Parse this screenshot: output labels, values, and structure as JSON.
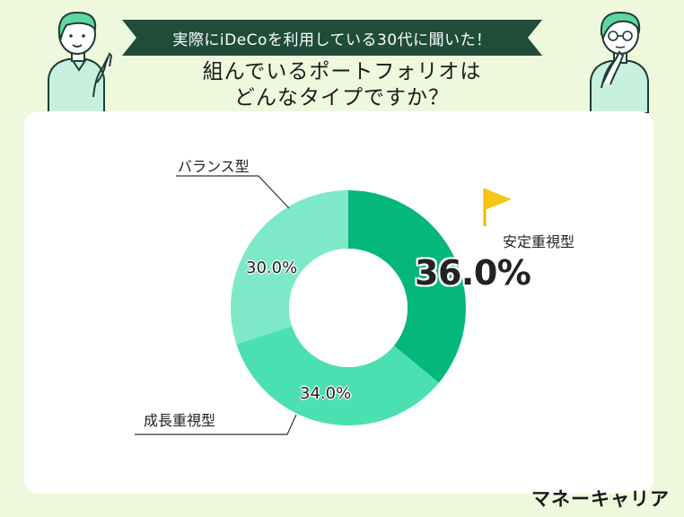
{
  "header": {
    "banner": "実際にiDeCoを利用している30代に聞いた！",
    "question_line1": "組んでいるポートフォリオは",
    "question_line2": "どんなタイプですか？"
  },
  "chart_data": {
    "type": "pie",
    "title": "",
    "categories": [
      "安定重視型",
      "成長重視型",
      "バランス型"
    ],
    "values": [
      36.0,
      34.0,
      30.0
    ],
    "value_labels": [
      "36.0%",
      "34.0%",
      "30.0%"
    ],
    "colors": [
      "#04b77a",
      "#4be0b2",
      "#7ee9c9"
    ],
    "donut": true,
    "legend": "labels next to slices",
    "highlight": "安定重視型"
  },
  "brand": "マネーキャリア",
  "icons": [
    "yellow-flag-icon",
    "woman-pointing-illustration",
    "man-thinking-illustration"
  ]
}
